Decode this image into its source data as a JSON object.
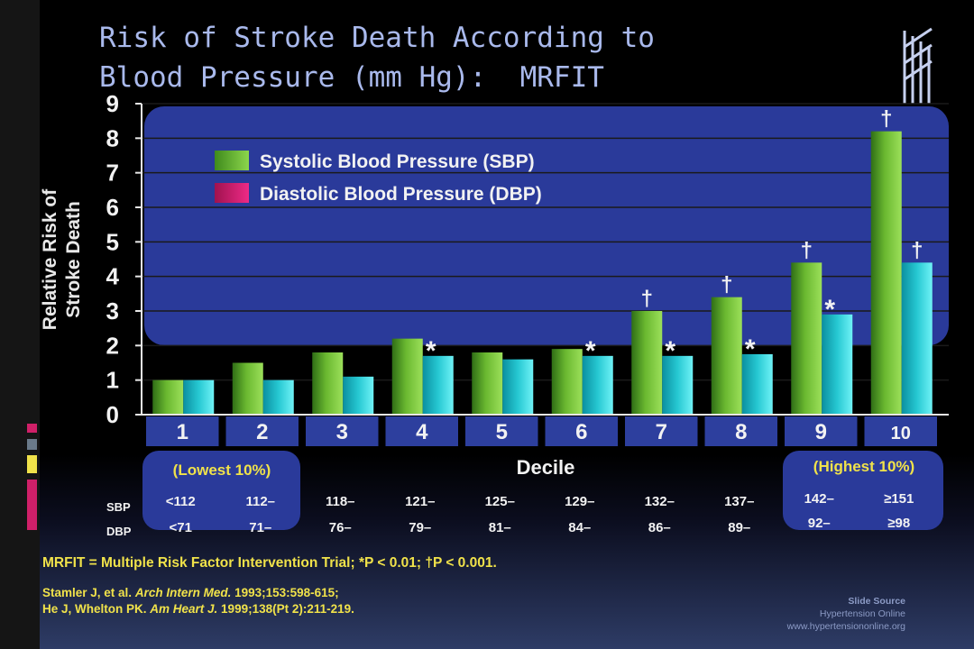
{
  "slide": {
    "title_lines": [
      "Risk of Stroke Death According to",
      "Blood Pressure (mm Hg):  MRFIT"
    ],
    "footnote": "MRFIT = Multiple Risk Factor Intervention Trial; *P < 0.01; †P < 0.001.",
    "references": [
      {
        "pre": "Stamler J, et al. ",
        "journal": "Arch Intern Med.",
        "post": " 1993;153:598-615;"
      },
      {
        "pre": "He J, Whelton PK. ",
        "journal": "Am Heart J.",
        "post": " 1999;138(Pt 2):211-219."
      }
    ],
    "source": {
      "title": "Slide Source",
      "line1": "Hypertension Online",
      "line2": "www.hypertensiononline.org"
    },
    "colors": {
      "sbp": "#6ab830",
      "dbp": "#26c8d2",
      "dbp_legend": "#d0186a",
      "panel": "#2a3a9a",
      "label_yellow": "#f0e24a",
      "title": "#a9b9ec"
    }
  },
  "chart_data": {
    "type": "bar",
    "title": "",
    "xlabel": "Decile",
    "ylabel": [
      "Relative Risk of",
      "Stroke Death"
    ],
    "ylim": [
      0,
      9
    ],
    "yticks": [
      "0",
      "1",
      "2",
      "3",
      "4",
      "5",
      "6",
      "7",
      "8",
      "9"
    ],
    "categories": [
      "1",
      "2",
      "3",
      "4",
      "5",
      "6",
      "7",
      "8",
      "9",
      "10"
    ],
    "series": [
      {
        "name": "Systolic Blood Pressure (SBP)",
        "values": [
          1.0,
          1.5,
          1.8,
          2.2,
          1.8,
          1.9,
          3.0,
          3.4,
          4.4,
          8.2
        ],
        "marks": [
          "",
          "",
          "",
          "",
          "",
          "",
          "†",
          "†",
          "†",
          "†"
        ]
      },
      {
        "name": "Diastolic Blood Pressure (DBP)",
        "values": [
          1.0,
          1.0,
          1.1,
          1.7,
          1.6,
          1.7,
          1.7,
          1.75,
          2.9,
          4.4
        ],
        "marks": [
          "",
          "",
          "",
          "*",
          "",
          "*",
          "*",
          "*",
          "*",
          "†"
        ]
      }
    ],
    "range_labels": {
      "sbp_label": "SBP",
      "dbp_label": "DBP",
      "sbp": [
        "<112",
        "112–",
        "118–",
        "121–",
        "125–",
        "129–",
        "132–",
        "137–",
        "142–",
        "≥151"
      ],
      "dbp": [
        "<71",
        "71–",
        "76–",
        "79–",
        "81–",
        "84–",
        "86–",
        "89–",
        "92–",
        "≥98"
      ]
    },
    "annotations": {
      "lowest": "(Lowest 10%)",
      "highest": "(Highest 10%)"
    },
    "legend_position": "top-left",
    "grid": true
  }
}
